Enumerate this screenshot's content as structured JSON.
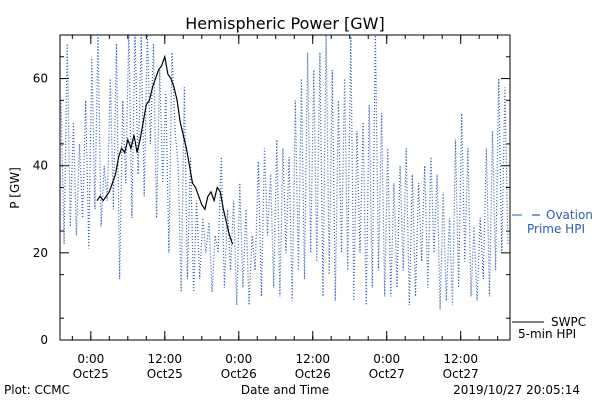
{
  "chart_data": {
    "type": "line",
    "title": "Hemispheric Power [GW]",
    "xlabel": "Date and Time",
    "ylabel": "P [GW]",
    "ylim": [
      0,
      70
    ],
    "xlim": [
      "2019-10-24T19:00",
      "2019-10-27T20:00"
    ],
    "y_ticks": [
      0,
      20,
      40,
      60
    ],
    "x_ticks": [
      {
        "t": "2019-10-25T00:00",
        "line1": "0:00",
        "line2": "Oct25"
      },
      {
        "t": "2019-10-25T12:00",
        "line1": "12:00",
        "line2": "Oct25"
      },
      {
        "t": "2019-10-26T00:00",
        "line1": "0:00",
        "line2": "Oct26"
      },
      {
        "t": "2019-10-26T12:00",
        "line1": "12:00",
        "line2": "Oct26"
      },
      {
        "t": "2019-10-27T00:00",
        "line1": "0:00",
        "line2": "Oct27"
      },
      {
        "t": "2019-10-27T12:00",
        "line1": "12:00",
        "line2": "Oct27"
      }
    ],
    "grid": false,
    "legend_position": "right",
    "colors": {
      "ovation": "#2a5cb8",
      "swpc": "#000000"
    },
    "series": [
      {
        "name": "Ovation Prime HPI",
        "legend_lines": [
          "Ovation",
          "Prime HPI"
        ],
        "style": "dotted",
        "color": "#2a5cb8",
        "x": [
          "2019-10-24T19:10",
          "2019-10-24T19:40",
          "2019-10-24T20:10",
          "2019-10-24T20:40",
          "2019-10-24T21:10",
          "2019-10-24T21:40",
          "2019-10-24T22:10",
          "2019-10-24T22:40",
          "2019-10-24T23:10",
          "2019-10-24T23:40",
          "2019-10-25T00:10",
          "2019-10-25T00:40",
          "2019-10-25T01:10",
          "2019-10-25T01:40",
          "2019-10-25T02:10",
          "2019-10-25T02:40",
          "2019-10-25T03:10",
          "2019-10-25T03:40",
          "2019-10-25T04:10",
          "2019-10-25T04:40",
          "2019-10-25T05:10",
          "2019-10-25T05:40",
          "2019-10-25T06:10",
          "2019-10-25T06:40",
          "2019-10-25T07:10",
          "2019-10-25T07:40",
          "2019-10-25T08:10",
          "2019-10-25T08:40",
          "2019-10-25T09:10",
          "2019-10-25T09:40",
          "2019-10-25T10:10",
          "2019-10-25T10:40",
          "2019-10-25T11:10",
          "2019-10-25T11:40",
          "2019-10-25T12:10",
          "2019-10-25T12:40",
          "2019-10-25T13:10",
          "2019-10-25T13:40",
          "2019-10-25T14:10",
          "2019-10-25T14:40",
          "2019-10-25T15:10",
          "2019-10-25T15:40",
          "2019-10-25T16:10",
          "2019-10-25T16:40",
          "2019-10-25T17:10",
          "2019-10-25T17:40",
          "2019-10-25T18:10",
          "2019-10-25T18:40",
          "2019-10-25T19:10",
          "2019-10-25T19:40",
          "2019-10-25T20:10",
          "2019-10-25T20:40",
          "2019-10-25T21:10",
          "2019-10-25T21:40",
          "2019-10-25T22:10",
          "2019-10-25T22:40",
          "2019-10-25T23:10",
          "2019-10-25T23:40",
          "2019-10-26T00:10",
          "2019-10-26T00:40",
          "2019-10-26T01:10",
          "2019-10-26T01:40",
          "2019-10-26T02:10",
          "2019-10-26T02:40",
          "2019-10-26T03:10",
          "2019-10-26T03:40",
          "2019-10-26T04:10",
          "2019-10-26T04:40",
          "2019-10-26T05:10",
          "2019-10-26T05:40",
          "2019-10-26T06:10",
          "2019-10-26T06:40",
          "2019-10-26T07:10",
          "2019-10-26T07:40",
          "2019-10-26T08:10",
          "2019-10-26T08:40",
          "2019-10-26T09:10",
          "2019-10-26T09:40",
          "2019-10-26T10:10",
          "2019-10-26T10:40",
          "2019-10-26T11:10",
          "2019-10-26T11:40",
          "2019-10-26T12:10",
          "2019-10-26T12:40",
          "2019-10-26T13:10",
          "2019-10-26T13:40",
          "2019-10-26T14:10",
          "2019-10-26T14:40",
          "2019-10-26T15:10",
          "2019-10-26T15:40",
          "2019-10-26T16:10",
          "2019-10-26T16:40",
          "2019-10-26T17:10",
          "2019-10-26T17:40",
          "2019-10-26T18:10",
          "2019-10-26T18:40",
          "2019-10-26T19:10",
          "2019-10-26T19:40",
          "2019-10-26T20:10",
          "2019-10-26T20:40",
          "2019-10-26T21:10",
          "2019-10-26T21:40",
          "2019-10-26T22:10",
          "2019-10-26T22:40",
          "2019-10-26T23:10",
          "2019-10-26T23:40",
          "2019-10-27T00:10",
          "2019-10-27T00:40",
          "2019-10-27T01:10",
          "2019-10-27T01:40",
          "2019-10-27T02:10",
          "2019-10-27T02:40",
          "2019-10-27T03:10",
          "2019-10-27T03:40",
          "2019-10-27T04:10",
          "2019-10-27T04:40",
          "2019-10-27T05:10",
          "2019-10-27T05:40",
          "2019-10-27T06:10",
          "2019-10-27T06:40",
          "2019-10-27T07:10",
          "2019-10-27T07:40",
          "2019-10-27T08:10",
          "2019-10-27T08:40",
          "2019-10-27T09:10",
          "2019-10-27T09:40",
          "2019-10-27T10:10",
          "2019-10-27T10:40",
          "2019-10-27T11:10",
          "2019-10-27T11:40",
          "2019-10-27T12:10",
          "2019-10-27T12:40",
          "2019-10-27T13:10",
          "2019-10-27T13:40",
          "2019-10-27T14:10",
          "2019-10-27T14:40",
          "2019-10-27T15:10",
          "2019-10-27T15:40",
          "2019-10-27T16:10",
          "2019-10-27T16:40",
          "2019-10-27T17:10",
          "2019-10-27T17:40",
          "2019-10-27T18:10",
          "2019-10-27T18:40",
          "2019-10-27T19:10",
          "2019-10-27T19:40"
        ],
        "y": [
          55,
          22,
          68,
          26,
          50,
          24,
          45,
          28,
          55,
          21,
          65,
          30,
          70,
          26,
          40,
          32,
          60,
          30,
          68,
          14,
          55,
          36,
          71,
          28,
          71,
          38,
          70,
          33,
          71,
          45,
          68,
          28,
          62,
          36,
          57,
          20,
          66,
          48,
          40,
          11,
          58,
          14,
          42,
          11,
          32,
          14,
          28,
          20,
          27,
          11,
          24,
          20,
          42,
          12,
          30,
          16,
          32,
          8,
          36,
          12,
          30,
          8,
          24,
          16,
          41,
          10,
          44,
          24,
          38,
          12,
          46,
          10,
          44,
          20,
          42,
          9,
          55,
          16,
          60,
          14,
          66,
          20,
          62,
          18,
          66,
          10,
          71,
          15,
          62,
          9,
          55,
          20,
          60,
          16,
          70,
          9,
          48,
          20,
          50,
          8,
          54,
          12,
          71,
          16,
          52,
          10,
          44,
          10,
          36,
          12,
          40,
          16,
          44,
          8,
          38,
          10,
          36,
          18,
          40,
          12,
          42,
          20,
          38,
          7,
          34,
          9,
          28,
          8,
          46,
          12,
          52,
          18,
          44,
          10,
          26,
          9,
          28,
          14,
          44,
          10,
          48,
          16,
          60,
          20,
          58,
          22
        ]
      },
      {
        "name": "SWPC 5-min HPI",
        "legend_lines": [
          "SWPC",
          "5-min HPI"
        ],
        "style": "solid",
        "color": "#000000",
        "x": [
          "2019-10-25T01:00",
          "2019-10-25T01:30",
          "2019-10-25T02:00",
          "2019-10-25T02:30",
          "2019-10-25T03:00",
          "2019-10-25T03:30",
          "2019-10-25T04:00",
          "2019-10-25T04:30",
          "2019-10-25T05:00",
          "2019-10-25T05:30",
          "2019-10-25T06:00",
          "2019-10-25T06:30",
          "2019-10-25T07:00",
          "2019-10-25T07:30",
          "2019-10-25T08:00",
          "2019-10-25T08:30",
          "2019-10-25T09:00",
          "2019-10-25T09:30",
          "2019-10-25T10:00",
          "2019-10-25T10:30",
          "2019-10-25T11:00",
          "2019-10-25T11:30",
          "2019-10-25T12:00",
          "2019-10-25T12:30",
          "2019-10-25T13:00",
          "2019-10-25T13:30",
          "2019-10-25T14:00",
          "2019-10-25T14:30",
          "2019-10-25T15:00",
          "2019-10-25T15:30",
          "2019-10-25T16:00",
          "2019-10-25T16:30",
          "2019-10-25T17:00",
          "2019-10-25T17:30",
          "2019-10-25T18:00",
          "2019-10-25T18:30",
          "2019-10-25T19:00",
          "2019-10-25T19:30",
          "2019-10-25T20:00",
          "2019-10-25T20:30",
          "2019-10-25T21:00",
          "2019-10-25T21:30",
          "2019-10-25T22:00",
          "2019-10-25T22:30",
          "2019-10-25T23:00"
        ],
        "y": [
          32,
          33,
          32,
          33,
          34,
          36,
          38,
          42,
          44,
          43,
          46,
          44,
          47,
          43,
          46,
          50,
          54,
          55,
          58,
          60,
          62,
          63,
          65,
          61,
          60,
          58,
          55,
          50,
          47,
          44,
          40,
          36,
          35,
          33,
          31,
          30,
          33,
          34,
          32,
          35,
          34,
          30,
          27,
          24,
          22
        ]
      }
    ]
  },
  "footer": {
    "left": "Plot: CCMC",
    "right": "2019/10/27 20:05:14"
  }
}
